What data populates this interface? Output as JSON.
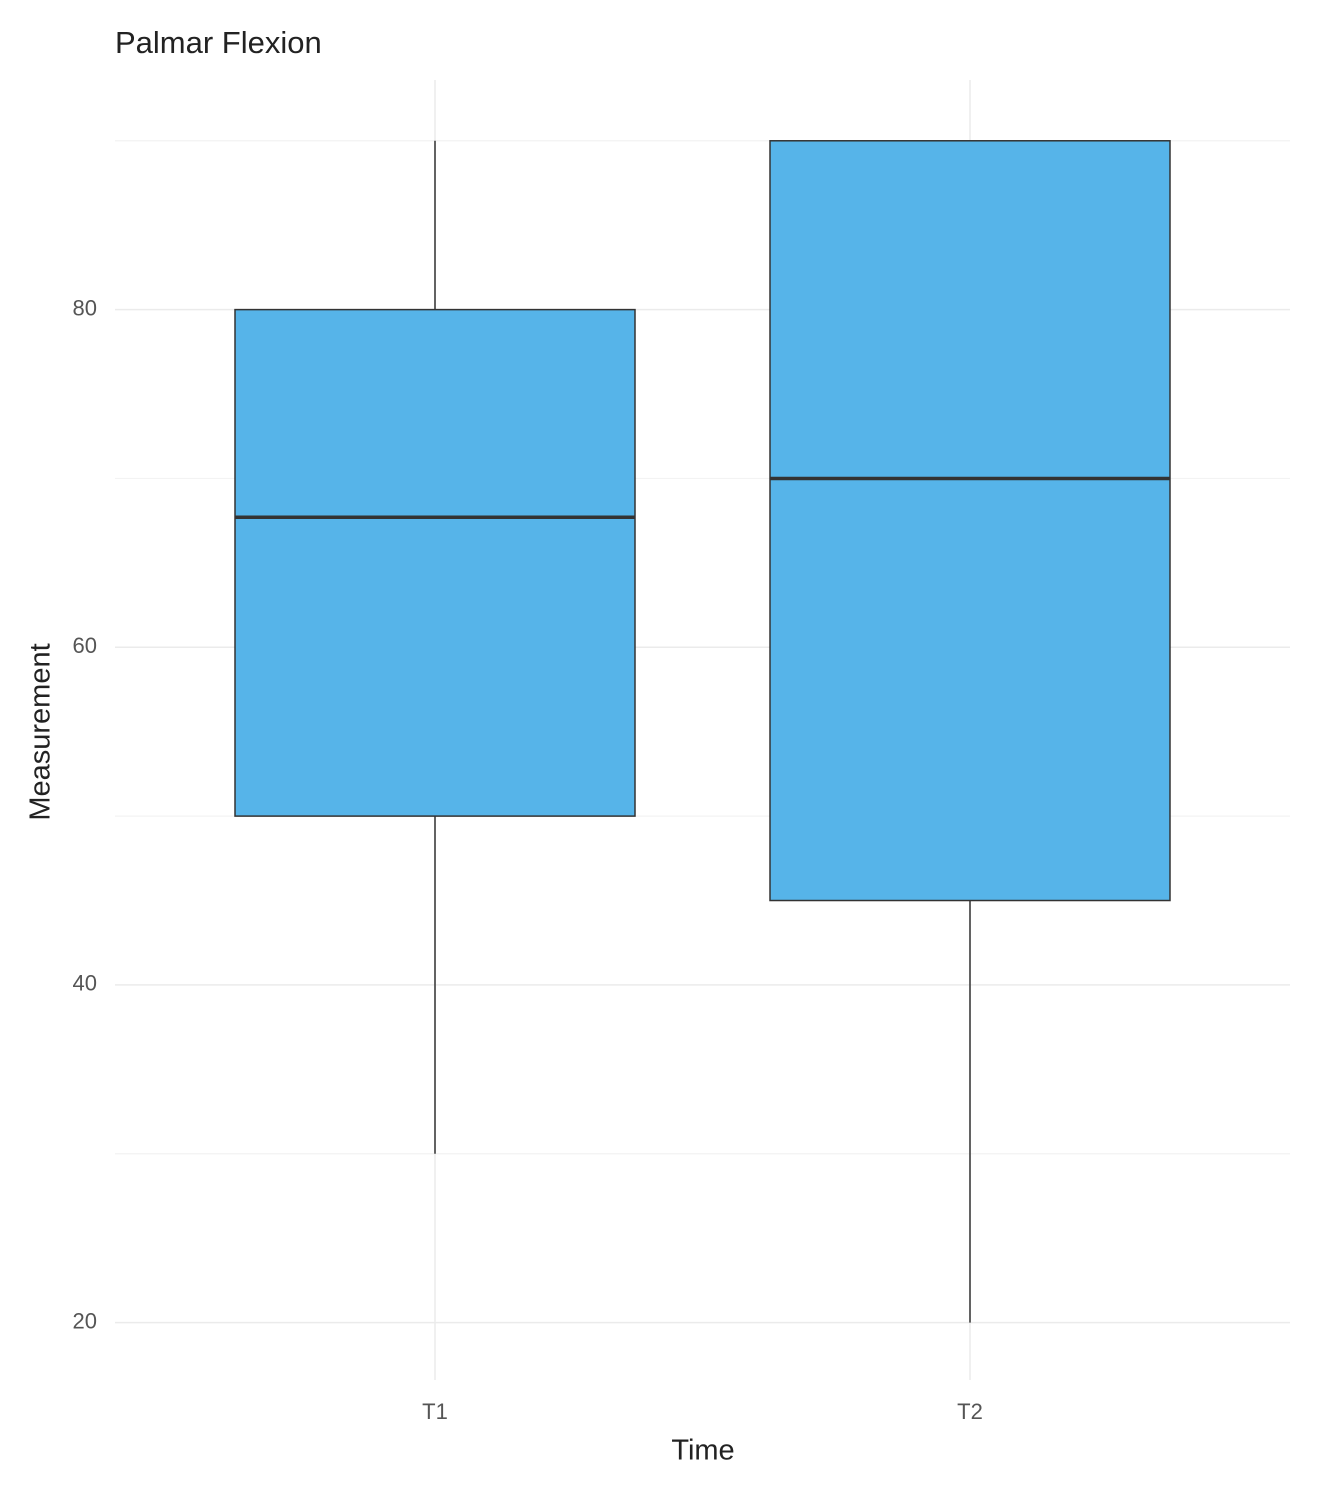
{
  "chart_data": {
    "type": "box",
    "title": "Palmar Flexion",
    "x_label": "Time",
    "y_label": "Measurement",
    "categories": [
      "T1",
      "T2"
    ],
    "boxes": [
      {
        "min": 30,
        "q1": 50,
        "median": 67.7,
        "q3": 80,
        "max": 90
      },
      {
        "min": 20,
        "q1": 45,
        "median": 70,
        "q3": 90,
        "max": 90
      }
    ],
    "color": "#56b4e9",
    "ylim": [
      16.6,
      93.6
    ],
    "yticks": [
      20,
      40,
      60,
      80
    ],
    "y_minor_ticks": [
      30,
      50,
      70,
      90
    ],
    "grid": true
  }
}
